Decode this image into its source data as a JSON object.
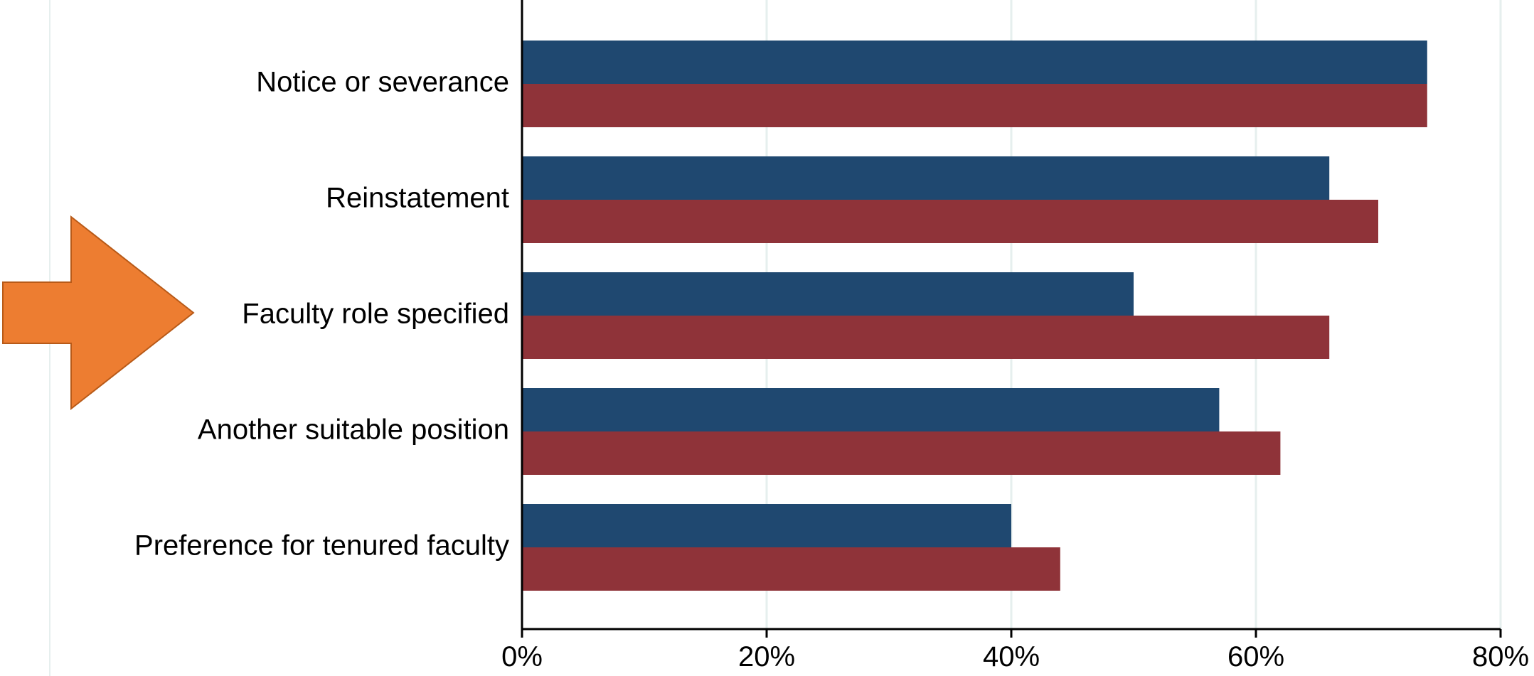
{
  "chart_data": {
    "type": "bar",
    "orientation": "horizontal",
    "categories": [
      "Notice or severance",
      "Reinstatement",
      "Faculty role specified",
      "Another suitable position",
      "Preference for tenured faculty"
    ],
    "series": [
      {
        "values": [
          74,
          66,
          50,
          57,
          40
        ],
        "color": "#1f4870"
      },
      {
        "values": [
          74,
          70,
          66,
          62,
          44
        ],
        "color": "#8f3339"
      }
    ],
    "x_ticks": [
      "0%",
      "20%",
      "40%",
      "60%",
      "80%"
    ],
    "x_tick_values": [
      0,
      20,
      40,
      60,
      80
    ],
    "xlim": [
      0,
      80
    ],
    "grid": "vertical",
    "grid_color": "#e6efee",
    "legend": "none",
    "annotation": {
      "shape": "arrow-right",
      "color": "#ed7d31",
      "points_to": "Faculty role specified"
    }
  }
}
